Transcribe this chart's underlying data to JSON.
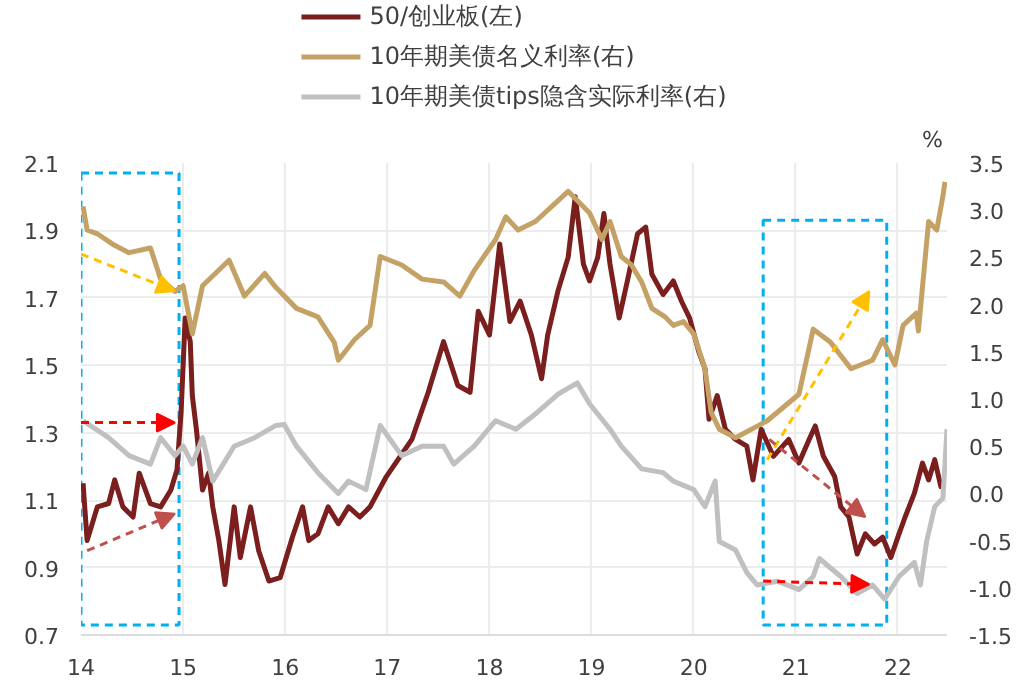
{
  "chart_data": {
    "type": "line",
    "y2label": "%",
    "xlim": [
      14,
      22.48
    ],
    "xticks": [
      14,
      15,
      16,
      17,
      18,
      19,
      20,
      21,
      22
    ],
    "ylim": [
      0.7,
      2.1
    ],
    "yticks": [
      0.7,
      0.9,
      1.1,
      1.3,
      1.5,
      1.7,
      1.9,
      2.1
    ],
    "y2lim": [
      -1.5,
      3.5
    ],
    "y2ticks": [
      -1.5,
      {
        "value": -1,
        "label": "-1.0"
      },
      -0.5,
      {
        "value": 0,
        "label": "0.0"
      },
      0.5,
      {
        "value": 1,
        "label": "1.0"
      },
      1.5,
      {
        "value": 2,
        "label": "2.0"
      },
      2.5,
      {
        "value": 3,
        "label": "3.0"
      },
      3.5
    ],
    "grid": true,
    "legend": "top",
    "series": [
      {
        "name": "50/创业板(左)",
        "color": "#7a1e1e",
        "x": [
          14.02,
          14.06,
          14.16,
          14.27,
          14.33,
          14.41,
          14.51,
          14.57,
          14.68,
          14.78,
          14.88,
          14.94,
          14.98,
          15.02,
          15.07,
          15.09,
          15.13,
          15.19,
          15.25,
          15.29,
          15.35,
          15.41,
          15.5,
          15.56,
          15.66,
          15.74,
          15.84,
          15.95,
          16.07,
          16.17,
          16.23,
          16.32,
          16.42,
          16.52,
          16.62,
          16.73,
          16.83,
          16.99,
          17.24,
          17.4,
          17.55,
          17.69,
          17.81,
          17.89,
          18.0,
          18.1,
          18.2,
          18.3,
          18.41,
          18.51,
          18.57,
          18.67,
          18.77,
          18.84,
          18.92,
          18.98,
          19.06,
          19.12,
          19.18,
          19.27,
          19.35,
          19.45,
          19.53,
          19.59,
          19.7,
          19.8,
          19.88,
          19.96,
          20.05,
          20.11,
          20.15,
          20.23,
          20.31,
          20.41,
          20.52,
          20.58,
          20.66,
          20.78,
          20.93,
          21.03,
          21.13,
          21.19,
          21.27,
          21.38,
          21.44,
          21.52,
          21.6,
          21.68,
          21.77,
          21.85,
          21.93,
          22.01,
          22.07,
          22.16,
          22.24,
          22.3,
          22.36,
          22.42,
          22.46
        ],
        "values": [
          1.15,
          0.98,
          1.08,
          1.09,
          1.16,
          1.08,
          1.05,
          1.18,
          1.09,
          1.08,
          1.13,
          1.19,
          1.36,
          1.64,
          1.57,
          1.41,
          1.31,
          1.13,
          1.18,
          1.08,
          0.98,
          0.85,
          1.08,
          0.93,
          1.08,
          0.95,
          0.86,
          0.87,
          0.99,
          1.08,
          0.98,
          1.0,
          1.08,
          1.03,
          1.08,
          1.05,
          1.08,
          1.17,
          1.28,
          1.42,
          1.57,
          1.44,
          1.42,
          1.66,
          1.59,
          1.86,
          1.63,
          1.69,
          1.59,
          1.46,
          1.59,
          1.72,
          1.82,
          2.0,
          1.8,
          1.75,
          1.82,
          1.95,
          1.8,
          1.64,
          1.75,
          1.89,
          1.91,
          1.77,
          1.71,
          1.75,
          1.69,
          1.64,
          1.54,
          1.49,
          1.34,
          1.41,
          1.31,
          1.28,
          1.26,
          1.16,
          1.31,
          1.23,
          1.28,
          1.21,
          1.28,
          1.32,
          1.23,
          1.17,
          1.08,
          1.05,
          0.94,
          1.0,
          0.97,
          0.99,
          0.93,
          1.0,
          1.05,
          1.12,
          1.21,
          1.16,
          1.22,
          1.14,
          1.14
        ]
      },
      {
        "name": "10年期美债名义利率(右)",
        "color": "#c4a265",
        "axis": "y2",
        "x": [
          14.02,
          14.06,
          14.16,
          14.31,
          14.47,
          14.68,
          14.78,
          14.92,
          15.0,
          15.09,
          15.19,
          15.45,
          15.6,
          15.8,
          15.91,
          16.11,
          16.32,
          16.48,
          16.52,
          16.68,
          16.83,
          16.93,
          17.14,
          17.34,
          17.55,
          17.71,
          17.85,
          18.06,
          18.16,
          18.28,
          18.45,
          18.77,
          18.98,
          19.1,
          19.18,
          19.29,
          19.39,
          19.49,
          19.59,
          19.72,
          19.8,
          19.9,
          20.0,
          20.11,
          20.17,
          20.25,
          20.41,
          20.72,
          21.03,
          21.17,
          21.34,
          21.54,
          21.75,
          21.85,
          21.97,
          22.05,
          22.18,
          22.2,
          22.26,
          22.3,
          22.38,
          22.44,
          22.46
        ],
        "values": [
          3.04,
          2.79,
          2.75,
          2.64,
          2.55,
          2.6,
          2.27,
          2.14,
          2.2,
          1.69,
          2.2,
          2.47,
          2.09,
          2.33,
          2.18,
          1.96,
          1.87,
          1.6,
          1.41,
          1.63,
          1.78,
          2.51,
          2.42,
          2.27,
          2.24,
          2.09,
          2.36,
          2.69,
          2.93,
          2.79,
          2.88,
          3.2,
          2.97,
          2.69,
          2.88,
          2.51,
          2.42,
          2.24,
          1.96,
          1.87,
          1.78,
          1.82,
          1.69,
          1.32,
          0.86,
          0.68,
          0.59,
          0.77,
          1.05,
          1.74,
          1.6,
          1.32,
          1.41,
          1.63,
          1.36,
          1.78,
          1.91,
          1.72,
          2.42,
          2.88,
          2.79,
          3.15,
          3.3
        ]
      },
      {
        "name": "10年期美债tips隐含实际利率(右)",
        "color": "#c0c0c0",
        "axis": "y2",
        "x": [
          14.02,
          14.27,
          14.47,
          14.68,
          14.78,
          14.92,
          15.0,
          15.09,
          15.19,
          15.29,
          15.5,
          15.7,
          15.91,
          15.99,
          16.11,
          16.32,
          16.52,
          16.62,
          16.79,
          16.93,
          17.14,
          17.34,
          17.55,
          17.65,
          17.85,
          18.06,
          18.26,
          18.47,
          18.67,
          18.86,
          18.98,
          19.18,
          19.29,
          19.49,
          19.7,
          19.8,
          20.0,
          20.11,
          20.21,
          20.25,
          20.41,
          20.52,
          20.62,
          20.82,
          21.03,
          21.17,
          21.23,
          21.34,
          21.44,
          21.6,
          21.75,
          21.87,
          22.01,
          22.16,
          22.22,
          22.28,
          22.36,
          22.44,
          22.48
        ],
        "values": [
          0.77,
          0.59,
          0.4,
          0.31,
          0.59,
          0.4,
          0.5,
          0.31,
          0.59,
          0.13,
          0.5,
          0.59,
          0.72,
          0.73,
          0.5,
          0.22,
          0.0,
          0.13,
          0.04,
          0.72,
          0.4,
          0.5,
          0.5,
          0.31,
          0.5,
          0.77,
          0.68,
          0.86,
          1.05,
          1.17,
          0.95,
          0.68,
          0.5,
          0.26,
          0.22,
          0.13,
          0.04,
          -0.14,
          0.13,
          -0.51,
          -0.6,
          -0.84,
          -0.97,
          -0.93,
          -1.02,
          -0.88,
          -0.69,
          -0.79,
          -0.88,
          -1.06,
          -0.97,
          -1.12,
          -0.88,
          -0.73,
          -0.97,
          -0.51,
          -0.14,
          -0.05,
          0.68
        ]
      }
    ]
  }
}
